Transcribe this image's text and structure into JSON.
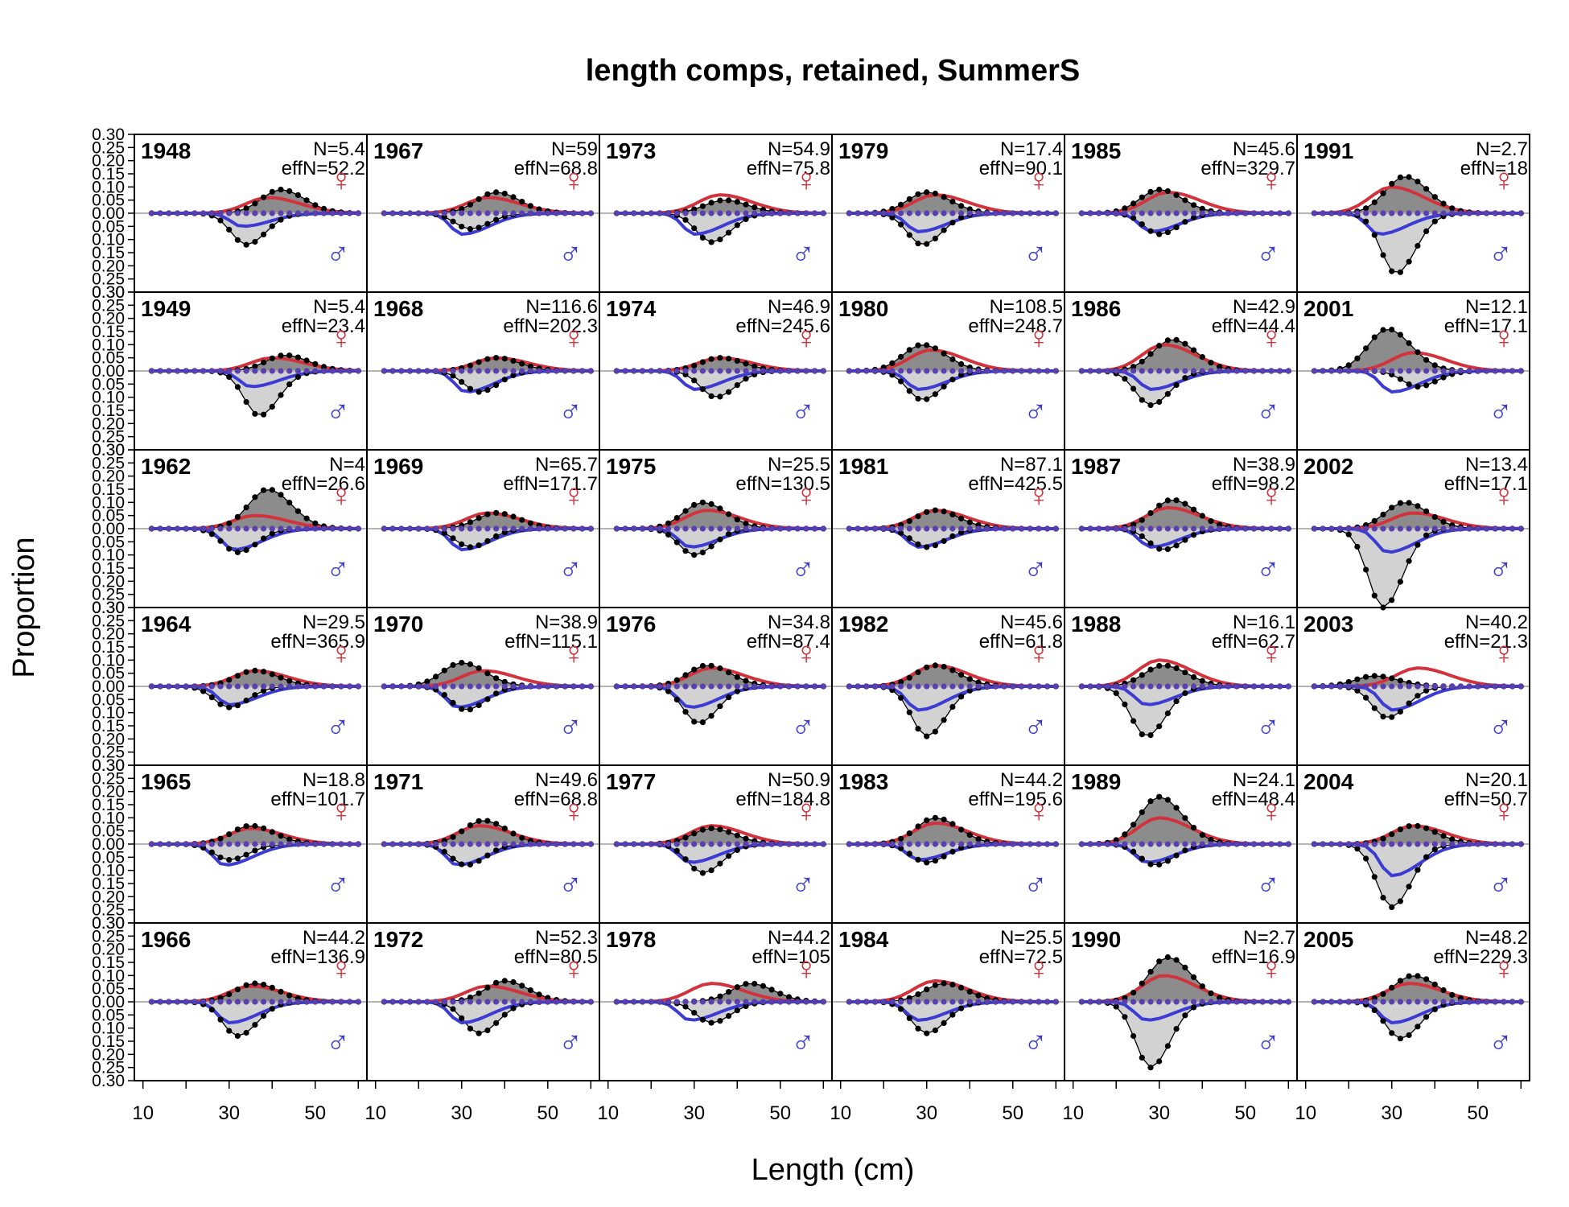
{
  "chart_data": {
    "type": "area",
    "title": "length comps, retained, SummerS",
    "xlabel": "Length (cm)",
    "ylabel": "Proportion",
    "xlim": [
      10,
      64
    ],
    "ylim": [
      -0.3,
      0.3
    ],
    "xticks": [
      10,
      30,
      50
    ],
    "yticks": [
      "0.30",
      "0.25",
      "0.20",
      "0.15",
      "0.10",
      "0.05",
      "0.00",
      "0.05",
      "0.10",
      "0.15",
      "0.20",
      "0.25",
      "0.30"
    ],
    "grid": false,
    "female_symbol": "♀",
    "male_symbol": "♂",
    "colors": {
      "female": "#d2323c",
      "male": "#3c3cd2",
      "obs_female_fill": "#8c8c8c",
      "obs_male_fill": "#d2d2d2",
      "zero_line": "#b4b4b4",
      "points": "#000000"
    },
    "x_bins": [
      14,
      16,
      18,
      20,
      22,
      24,
      26,
      28,
      30,
      32,
      34,
      36,
      38,
      40,
      42,
      44,
      46,
      48,
      50,
      52,
      54,
      56,
      58,
      60,
      62
    ],
    "layout": {
      "rows": 6,
      "cols": 6,
      "order": "column-major"
    },
    "panels": [
      {
        "year": "1948",
        "N": "N=5.4",
        "effN": "effN=52.2",
        "f_peak": 0.06,
        "f_mode": 41,
        "m_peak": 0.05,
        "m_mode": 35,
        "of_peak": 0.09,
        "of_mode": 44,
        "om_peak": 0.12,
        "om_mode": 36
      },
      {
        "year": "1949",
        "N": "N=5.4",
        "effN": "effN=23.4",
        "f_peak": 0.05,
        "f_mode": 42,
        "m_peak": 0.06,
        "m_mode": 37,
        "of_peak": 0.06,
        "of_mode": 45,
        "om_peak": 0.17,
        "om_mode": 39
      },
      {
        "year": "1962",
        "N": "N=4",
        "effN": "effN=26.6",
        "f_peak": 0.05,
        "f_mode": 38,
        "m_peak": 0.08,
        "m_mode": 33,
        "of_peak": 0.15,
        "of_mode": 41,
        "om_peak": 0.09,
        "om_mode": 34
      },
      {
        "year": "1964",
        "N": "N=29.5",
        "effN": "effN=365.9",
        "f_peak": 0.06,
        "f_mode": 38,
        "m_peak": 0.07,
        "m_mode": 32,
        "of_peak": 0.06,
        "of_mode": 38,
        "om_peak": 0.08,
        "om_mode": 32
      },
      {
        "year": "1965",
        "N": "N=18.8",
        "effN": "effN=101.7",
        "f_peak": 0.06,
        "f_mode": 37,
        "m_peak": 0.08,
        "m_mode": 31,
        "of_peak": 0.07,
        "of_mode": 37,
        "om_peak": 0.06,
        "om_mode": 32
      },
      {
        "year": "1966",
        "N": "N=44.2",
        "effN": "effN=136.9",
        "f_peak": 0.06,
        "f_mode": 37,
        "m_peak": 0.08,
        "m_mode": 32,
        "of_peak": 0.07,
        "of_mode": 38,
        "om_peak": 0.13,
        "om_mode": 34
      },
      {
        "year": "1967",
        "N": "N=59",
        "effN": "effN=68.8",
        "f_peak": 0.06,
        "f_mode": 38,
        "m_peak": 0.08,
        "m_mode": 32,
        "of_peak": 0.08,
        "of_mode": 40,
        "om_peak": 0.06,
        "om_mode": 34
      },
      {
        "year": "1968",
        "N": "N=116.6",
        "effN": "effN=202.3",
        "f_peak": 0.05,
        "f_mode": 40,
        "m_peak": 0.08,
        "m_mode": 33,
        "of_peak": 0.05,
        "of_mode": 40,
        "om_peak": 0.08,
        "om_mode": 36
      },
      {
        "year": "1969",
        "N": "N=65.7",
        "effN": "effN=171.7",
        "f_peak": 0.06,
        "f_mode": 38,
        "m_peak": 0.08,
        "m_mode": 32,
        "of_peak": 0.06,
        "of_mode": 40,
        "om_peak": 0.07,
        "om_mode": 34
      },
      {
        "year": "1970",
        "N": "N=38.9",
        "effN": "effN=115.1",
        "f_peak": 0.06,
        "f_mode": 37,
        "m_peak": 0.08,
        "m_mode": 31,
        "of_peak": 0.09,
        "of_mode": 32,
        "om_peak": 0.09,
        "om_mode": 33
      },
      {
        "year": "1971",
        "N": "N=49.6",
        "effN": "effN=68.8",
        "f_peak": 0.07,
        "f_mode": 36,
        "m_peak": 0.08,
        "m_mode": 31,
        "of_peak": 0.09,
        "of_mode": 37,
        "om_peak": 0.08,
        "om_mode": 33
      },
      {
        "year": "1972",
        "N": "N=52.3",
        "effN": "effN=80.5",
        "f_peak": 0.06,
        "f_mode": 38,
        "m_peak": 0.08,
        "m_mode": 32,
        "of_peak": 0.08,
        "of_mode": 42,
        "om_peak": 0.12,
        "om_mode": 36
      },
      {
        "year": "1973",
        "N": "N=54.9",
        "effN": "effN=75.8",
        "f_peak": 0.07,
        "f_mode": 38,
        "m_peak": 0.08,
        "m_mode": 32,
        "of_peak": 0.05,
        "of_mode": 39,
        "om_peak": 0.11,
        "om_mode": 36
      },
      {
        "year": "1974",
        "N": "N=46.9",
        "effN": "effN=245.6",
        "f_peak": 0.05,
        "f_mode": 38,
        "m_peak": 0.07,
        "m_mode": 32,
        "of_peak": 0.05,
        "of_mode": 38,
        "om_peak": 0.1,
        "om_mode": 37
      },
      {
        "year": "1975",
        "N": "N=25.5",
        "effN": "effN=130.5",
        "f_peak": 0.07,
        "f_mode": 35,
        "m_peak": 0.07,
        "m_mode": 31,
        "of_peak": 0.1,
        "of_mode": 34,
        "om_peak": 0.1,
        "om_mode": 32
      },
      {
        "year": "1976",
        "N": "N=34.8",
        "effN": "effN=87.4",
        "f_peak": 0.07,
        "f_mode": 36,
        "m_peak": 0.08,
        "m_mode": 31,
        "of_peak": 0.08,
        "of_mode": 35,
        "om_peak": 0.14,
        "om_mode": 33
      },
      {
        "year": "1977",
        "N": "N=50.9",
        "effN": "effN=184.8",
        "f_peak": 0.07,
        "f_mode": 36,
        "m_peak": 0.07,
        "m_mode": 31,
        "of_peak": 0.06,
        "of_mode": 36,
        "om_peak": 0.11,
        "om_mode": 34
      },
      {
        "year": "1978",
        "N": "N=44.2",
        "effN": "effN=105",
        "f_peak": 0.07,
        "f_mode": 36,
        "m_peak": 0.07,
        "m_mode": 31,
        "of_peak": 0.07,
        "of_mode": 45,
        "om_peak": 0.08,
        "om_mode": 36
      },
      {
        "year": "1979",
        "N": "N=17.4",
        "effN": "effN=90.1",
        "f_peak": 0.07,
        "f_mode": 34,
        "m_peak": 0.07,
        "m_mode": 30,
        "of_peak": 0.08,
        "of_mode": 32,
        "om_peak": 0.12,
        "om_mode": 31
      },
      {
        "year": "1980",
        "N": "N=108.5",
        "effN": "effN=248.7",
        "f_peak": 0.08,
        "f_mode": 33,
        "m_peak": 0.07,
        "m_mode": 30,
        "of_peak": 0.1,
        "of_mode": 31,
        "om_peak": 0.11,
        "om_mode": 31
      },
      {
        "year": "1981",
        "N": "N=87.1",
        "effN": "effN=425.5",
        "f_peak": 0.07,
        "f_mode": 34,
        "m_peak": 0.07,
        "m_mode": 30,
        "of_peak": 0.07,
        "of_mode": 34,
        "om_peak": 0.07,
        "om_mode": 32
      },
      {
        "year": "1982",
        "N": "N=45.6",
        "effN": "effN=61.8",
        "f_peak": 0.08,
        "f_mode": 34,
        "m_peak": 0.09,
        "m_mode": 30,
        "of_peak": 0.08,
        "of_mode": 34,
        "om_peak": 0.19,
        "om_mode": 32
      },
      {
        "year": "1983",
        "N": "N=44.2",
        "effN": "effN=195.6",
        "f_peak": 0.08,
        "f_mode": 34,
        "m_peak": 0.06,
        "m_mode": 30,
        "of_peak": 0.1,
        "of_mode": 34,
        "om_peak": 0.07,
        "om_mode": 32
      },
      {
        "year": "1984",
        "N": "N=25.5",
        "effN": "effN=72.5",
        "f_peak": 0.08,
        "f_mode": 34,
        "m_peak": 0.07,
        "m_mode": 30,
        "of_peak": 0.07,
        "of_mode": 36,
        "om_peak": 0.12,
        "om_mode": 32
      },
      {
        "year": "1985",
        "N": "N=45.6",
        "effN": "effN=329.7",
        "f_peak": 0.08,
        "f_mode": 34,
        "m_peak": 0.07,
        "m_mode": 30,
        "of_peak": 0.09,
        "of_mode": 32,
        "om_peak": 0.08,
        "om_mode": 32
      },
      {
        "year": "1986",
        "N": "N=42.9",
        "effN": "effN=44.4",
        "f_peak": 0.1,
        "f_mode": 33,
        "m_peak": 0.07,
        "m_mode": 30,
        "of_peak": 0.12,
        "of_mode": 35,
        "om_peak": 0.13,
        "om_mode": 30
      },
      {
        "year": "1987",
        "N": "N=38.9",
        "effN": "effN=98.2",
        "f_peak": 0.08,
        "f_mode": 34,
        "m_peak": 0.07,
        "m_mode": 30,
        "of_peak": 0.11,
        "of_mode": 35,
        "om_peak": 0.08,
        "om_mode": 33
      },
      {
        "year": "1988",
        "N": "N=16.1",
        "effN": "effN=62.7",
        "f_peak": 0.1,
        "f_mode": 32,
        "m_peak": 0.07,
        "m_mode": 29,
        "of_peak": 0.08,
        "of_mode": 33,
        "om_peak": 0.19,
        "om_mode": 29
      },
      {
        "year": "1989",
        "N": "N=24.1",
        "effN": "effN=48.4",
        "f_peak": 0.1,
        "f_mode": 32,
        "m_peak": 0.07,
        "m_mode": 29,
        "of_peak": 0.18,
        "of_mode": 32,
        "om_peak": 0.08,
        "om_mode": 31
      },
      {
        "year": "1990",
        "N": "N=2.7",
        "effN": "effN=16.9",
        "f_peak": 0.1,
        "f_mode": 33,
        "m_peak": 0.07,
        "m_mode": 29,
        "of_peak": 0.17,
        "of_mode": 34,
        "om_peak": 0.25,
        "om_mode": 30
      },
      {
        "year": "1991",
        "N": "N=2.7",
        "effN": "effN=18",
        "f_peak": 0.1,
        "f_mode": 32,
        "m_peak": 0.08,
        "m_mode": 29,
        "of_peak": 0.14,
        "of_mode": 35,
        "om_peak": 0.23,
        "om_mode": 33
      },
      {
        "year": "2001",
        "N": "N=12.1",
        "effN": "effN=17.1",
        "f_peak": 0.07,
        "f_mode": 37,
        "m_peak": 0.08,
        "m_mode": 32,
        "of_peak": 0.16,
        "of_mode": 31,
        "om_peak": 0.06,
        "om_mode": 38
      },
      {
        "year": "2002",
        "N": "N=13.4",
        "effN": "effN=17.1",
        "f_peak": 0.06,
        "f_mode": 37,
        "m_peak": 0.09,
        "m_mode": 31,
        "of_peak": 0.1,
        "of_mode": 35,
        "om_peak": 0.3,
        "om_mode": 30
      },
      {
        "year": "2003",
        "N": "N=40.2",
        "effN": "effN=21.3",
        "f_peak": 0.07,
        "f_mode": 38,
        "m_peak": 0.09,
        "m_mode": 32,
        "of_peak": 0.04,
        "of_mode": 28,
        "om_peak": 0.12,
        "om_mode": 31
      },
      {
        "year": "2004",
        "N": "N=20.1",
        "effN": "effN=50.7",
        "f_peak": 0.07,
        "f_mode": 37,
        "m_peak": 0.12,
        "m_mode": 32,
        "of_peak": 0.07,
        "of_mode": 37,
        "om_peak": 0.24,
        "om_mode": 32
      },
      {
        "year": "2005",
        "N": "N=48.2",
        "effN": "effN=229.3",
        "f_peak": 0.07,
        "f_mode": 36,
        "m_peak": 0.08,
        "m_mode": 32,
        "of_peak": 0.1,
        "of_mode": 37,
        "om_peak": 0.14,
        "om_mode": 34
      }
    ]
  }
}
